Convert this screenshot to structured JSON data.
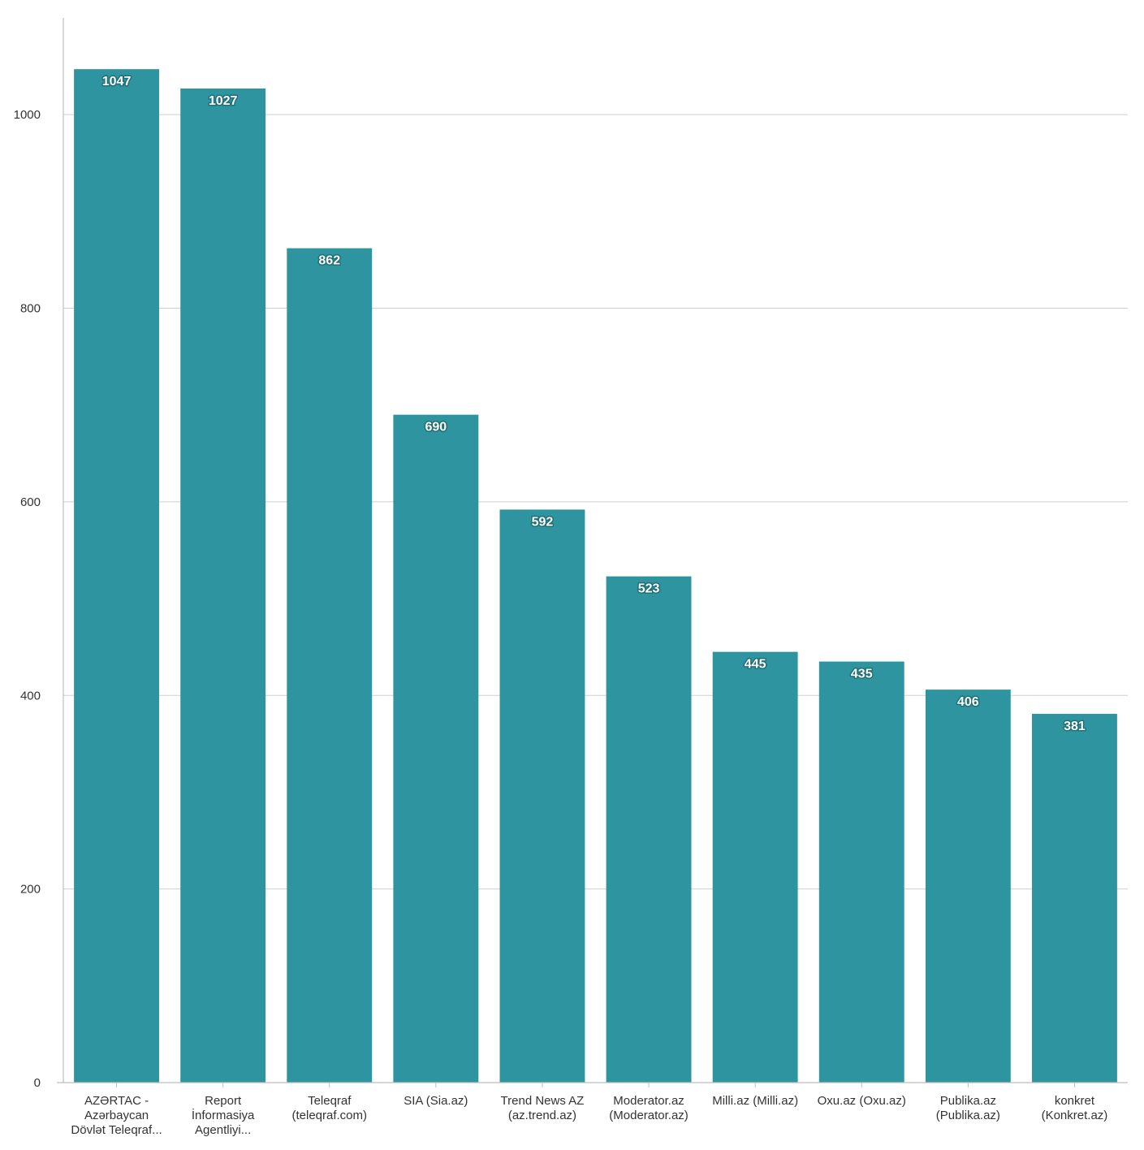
{
  "chart_data": {
    "type": "bar",
    "title": "",
    "xlabel": "",
    "ylabel": "",
    "categories": [
      [
        "AZƏRTAC -",
        "Azərbaycan",
        "Dövlət Teleqraf..."
      ],
      [
        "Report",
        "İnformasiya",
        "Agentliyi..."
      ],
      [
        "Teleqraf",
        "(teleqraf.com)"
      ],
      [
        "SIA (Sia.az)"
      ],
      [
        "Trend News AZ",
        "(az.trend.az)"
      ],
      [
        "Moderator.az",
        "(Moderator.az)"
      ],
      [
        "Milli.az (Milli.az)"
      ],
      [
        "Oxu.az (Oxu.az)"
      ],
      [
        "Publika.az",
        "(Publika.az)"
      ],
      [
        "konkret",
        "(Konkret.az)"
      ]
    ],
    "values": [
      1047,
      1027,
      862,
      690,
      592,
      523,
      445,
      435,
      406,
      381
    ],
    "ylim": [
      0,
      1100
    ],
    "yticks": [
      0,
      200,
      400,
      600,
      800,
      1000
    ],
    "grid": true,
    "bar_color": "#2e95a0",
    "show_data_labels": true
  }
}
